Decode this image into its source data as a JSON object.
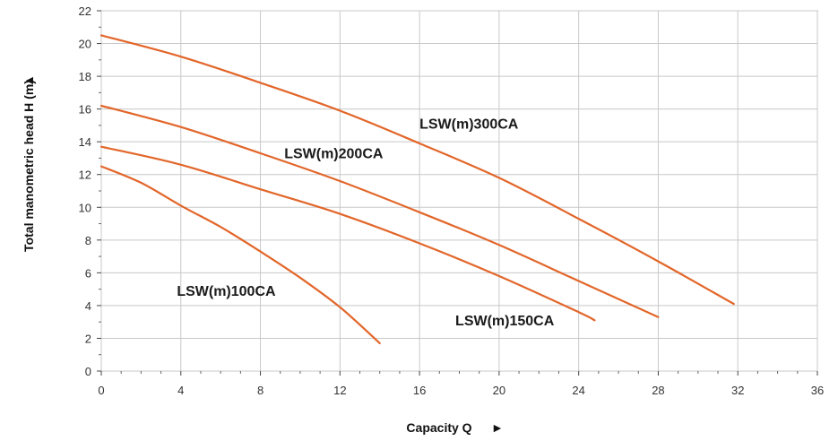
{
  "chart_data": {
    "type": "line",
    "xlabel": "Capacity Q",
    "ylabel": "Total manometric head H (m)",
    "xlabel_arrow": "►",
    "ylabel_arrow": "▲",
    "xlim": [
      0,
      36
    ],
    "ylim": [
      0,
      22
    ],
    "x_ticks": [
      0,
      4,
      8,
      12,
      16,
      20,
      24,
      28,
      32,
      36
    ],
    "y_ticks": [
      0,
      2,
      4,
      6,
      8,
      10,
      12,
      14,
      16,
      18,
      20,
      22
    ],
    "grid": true,
    "line_color": "#e2662a",
    "series": [
      {
        "name": "LSW(m)100CA",
        "x": [
          0,
          2,
          4,
          6,
          8,
          10,
          12,
          14
        ],
        "y": [
          12.5,
          11.5,
          10.1,
          8.8,
          7.3,
          5.7,
          3.9,
          1.7
        ]
      },
      {
        "name": "LSW(m)150CA",
        "x": [
          0,
          4,
          8,
          12,
          16,
          20,
          24,
          24.8
        ],
        "y": [
          13.7,
          12.6,
          11.1,
          9.6,
          7.8,
          5.8,
          3.6,
          3.1
        ]
      },
      {
        "name": "LSW(m)200CA",
        "x": [
          0,
          4,
          8,
          12,
          16,
          20,
          24,
          28
        ],
        "y": [
          16.2,
          14.9,
          13.3,
          11.6,
          9.7,
          7.7,
          5.5,
          3.3
        ]
      },
      {
        "name": "LSW(m)300CA",
        "x": [
          0,
          4,
          8,
          12,
          16,
          20,
          24,
          28,
          31.8
        ],
        "y": [
          20.5,
          19.2,
          17.6,
          15.9,
          13.9,
          11.8,
          9.3,
          6.7,
          4.1
        ]
      }
    ],
    "annotations": [
      {
        "text": "LSW(m)300CA",
        "x": 16.0,
        "y": 14.8
      },
      {
        "text": "LSW(m)200CA",
        "x": 9.2,
        "y": 13.0
      },
      {
        "text": "LSW(m)100CA",
        "x": 3.8,
        "y": 4.6
      },
      {
        "text": "LSW(m)150CA",
        "x": 17.8,
        "y": 2.8
      }
    ]
  }
}
